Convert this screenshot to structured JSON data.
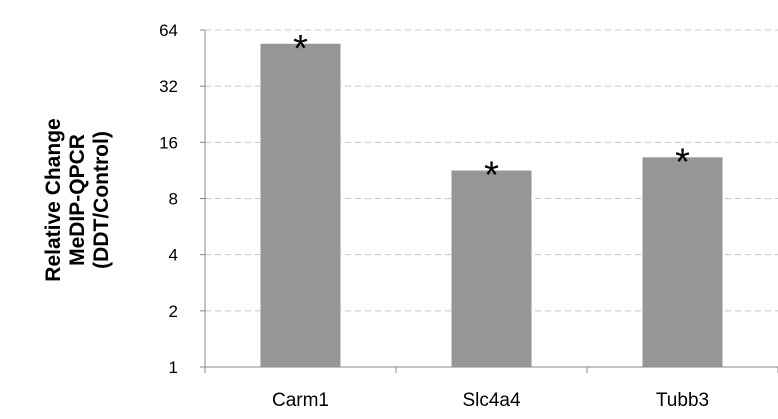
{
  "chart_data": {
    "type": "bar",
    "title": "",
    "xlabel": "",
    "ylabel_lines": [
      "Relative Change",
      "MeDIP-QPCR",
      "(DDT/Control)"
    ],
    "y_scale": "log2",
    "ylim": [
      1,
      64
    ],
    "yticks": [
      1,
      2,
      4,
      8,
      16,
      32,
      64
    ],
    "ytick_labels": [
      "1",
      "2",
      "4",
      "8",
      "16",
      "32",
      "64"
    ],
    "grid": "horizontal dashed",
    "legend": "none",
    "categories": [
      "Carm1",
      "Slc4a4",
      "Tubb3"
    ],
    "values": [
      54,
      11.3,
      13.3
    ],
    "annotations": [
      "*",
      "*",
      "*"
    ],
    "colors": {
      "bar": "#969696",
      "grid": "#c8c8c8",
      "axis": "#888888"
    }
  }
}
